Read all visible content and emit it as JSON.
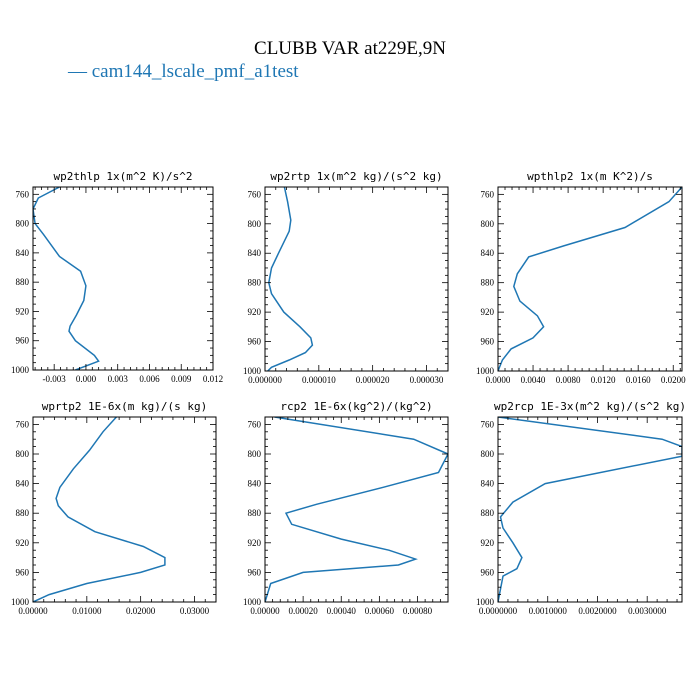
{
  "figure": {
    "title": "CLUBB VAR at229E,9N",
    "legend": "— cam144_lscale_pmf_a1test",
    "line_color": "#1f77b4"
  },
  "chart_data": [
    {
      "type": "line",
      "title": "wp2thlp  1x(m^2 K)/s^2",
      "xlim": [
        -0.005,
        0.012
      ],
      "ylim": [
        1000,
        750
      ],
      "xticks": [
        -0.003,
        0.0,
        0.003,
        0.006,
        0.009,
        0.012
      ],
      "xtick_labels": [
        "-0.003",
        "0.000",
        "0.003",
        "0.006",
        "0.009",
        "0.012"
      ],
      "yticks": [
        760,
        800,
        840,
        880,
        920,
        960,
        1000
      ],
      "ytick_labels": [
        "760",
        "800",
        "840",
        "880",
        "920",
        "960",
        "1000"
      ],
      "series": [
        {
          "x": [
            -0.0025,
            -0.0045,
            -0.005,
            -0.0048,
            -0.004,
            -0.0025,
            -0.0005,
            0.0,
            -0.0002,
            -0.0009,
            -0.0015,
            -0.0016,
            -0.001,
            0.0008,
            0.0012,
            -0.001
          ],
          "y": [
            750,
            765,
            780,
            800,
            815,
            845,
            865,
            885,
            905,
            925,
            940,
            947,
            960,
            980,
            988,
            1000
          ]
        }
      ]
    },
    {
      "type": "line",
      "title": "wp2rtp  1x(m^2 kg)/(s^2 kg)",
      "xlim": [
        0.0,
        3.4e-05
      ],
      "ylim": [
        1000,
        750
      ],
      "xticks": [
        0.0,
        1e-05,
        2e-05,
        3e-05
      ],
      "xtick_labels": [
        "0.000000",
        "0.000010",
        "0.000020",
        "0.000030"
      ],
      "yticks": [
        760,
        800,
        840,
        880,
        920,
        960,
        1000
      ],
      "ytick_labels": [
        "760",
        "800",
        "840",
        "880",
        "920",
        "960",
        "1000"
      ],
      "series": [
        {
          "x": [
            3.6e-06,
            4.2e-06,
            4.8e-06,
            4.5e-06,
            2.5e-06,
            1.2e-06,
            7e-07,
            1.2e-06,
            3.5e-06,
            6.5e-06,
            8.5e-06,
            8.8e-06,
            7.5e-06,
            4.5e-06,
            1.2e-06,
            5e-07
          ],
          "y": [
            750,
            770,
            795,
            810,
            840,
            860,
            880,
            895,
            920,
            940,
            955,
            965,
            975,
            985,
            995,
            1000
          ]
        }
      ]
    },
    {
      "type": "line",
      "title": "wpthlp2  1x(m K^2)/s",
      "xlim": [
        0.0,
        0.021
      ],
      "ylim": [
        1000,
        750
      ],
      "xticks": [
        0.0,
        0.004,
        0.008,
        0.012,
        0.016,
        0.02
      ],
      "xtick_labels": [
        "0.0000",
        "0.0040",
        "0.0080",
        "0.0120",
        "0.0160",
        "0.0200"
      ],
      "yticks": [
        760,
        800,
        840,
        880,
        920,
        960,
        1000
      ],
      "ytick_labels": [
        "760",
        "800",
        "840",
        "880",
        "920",
        "960",
        "1000"
      ],
      "series": [
        {
          "x": [
            0.021,
            0.0195,
            0.0145,
            0.0075,
            0.0035,
            0.0022,
            0.0018,
            0.0025,
            0.0045,
            0.0052,
            0.004,
            0.0015,
            0.0005,
            0.0
          ],
          "y": [
            750,
            770,
            805,
            830,
            845,
            868,
            885,
            905,
            925,
            940,
            955,
            970,
            985,
            1000
          ]
        }
      ]
    },
    {
      "type": "line",
      "title": "wprtp2  1E-6x(m kg)/(s kg)",
      "xlim": [
        0.0,
        0.034
      ],
      "ylim": [
        1000,
        750
      ],
      "xticks": [
        0.0,
        0.01,
        0.02,
        0.03
      ],
      "xtick_labels": [
        "0.00000",
        "0.01000",
        "0.02000",
        "0.03000"
      ],
      "yticks": [
        760,
        800,
        840,
        880,
        920,
        960,
        1000
      ],
      "ytick_labels": [
        "760",
        "800",
        "840",
        "880",
        "920",
        "960",
        "1000"
      ],
      "series": [
        {
          "x": [
            0.0155,
            0.013,
            0.0105,
            0.0075,
            0.005,
            0.0043,
            0.0047,
            0.0065,
            0.0115,
            0.0205,
            0.0245,
            0.0245,
            0.02,
            0.01,
            0.003,
            0.0
          ],
          "y": [
            750,
            770,
            795,
            820,
            845,
            860,
            870,
            885,
            905,
            925,
            940,
            950,
            960,
            975,
            990,
            1000
          ]
        }
      ]
    },
    {
      "type": "line",
      "title": "rcp2  1E-6x(kg^2)/(kg^2)",
      "xlim": [
        0.0,
        0.00096
      ],
      "ylim": [
        1000,
        750
      ],
      "xticks": [
        0.0,
        0.0002,
        0.0004,
        0.0006,
        0.0008
      ],
      "xtick_labels": [
        "0.00000",
        "0.00020",
        "0.00040",
        "0.00060",
        "0.00080"
      ],
      "yticks": [
        760,
        800,
        840,
        880,
        920,
        960,
        1000
      ],
      "ytick_labels": [
        "760",
        "800",
        "840",
        "880",
        "920",
        "960",
        "1000"
      ],
      "series": [
        {
          "x": [
            5e-05,
            0.00078,
            0.00096,
            0.00091,
            0.00062,
            0.00027,
            0.00011,
            0.00014,
            0.0004,
            0.00065,
            0.00079,
            0.0007,
            0.0002,
            3e-05,
            0.0
          ],
          "y": [
            750,
            780,
            800,
            825,
            845,
            868,
            880,
            895,
            915,
            930,
            942,
            950,
            960,
            975,
            1000
          ]
        }
      ]
    },
    {
      "type": "line",
      "title": "wp2rcp  1E-3x(m^2 kg)/(s^2 kg)",
      "xlim": [
        0.0,
        0.0037
      ],
      "ylim": [
        1000,
        750
      ],
      "xticks": [
        0.0,
        0.001,
        0.002,
        0.003
      ],
      "xtick_labels": [
        "0.0000000",
        "0.0010000",
        "0.0020000",
        "0.0030000"
      ],
      "yticks": [
        760,
        800,
        840,
        880,
        920,
        960,
        1000
      ],
      "ytick_labels": [
        "760",
        "800",
        "840",
        "880",
        "920",
        "960",
        "1000"
      ],
      "series": [
        {
          "x": [
            0.0,
            0.0033,
            0.0037,
            0.0037,
            0.00095,
            0.0003,
            5e-05,
            0.0001,
            0.0003,
            0.00048,
            0.00038,
            0.0001,
            0.0
          ],
          "y": [
            750,
            780,
            790,
            803,
            840,
            865,
            885,
            900,
            920,
            940,
            955,
            965,
            1000
          ]
        }
      ]
    }
  ]
}
